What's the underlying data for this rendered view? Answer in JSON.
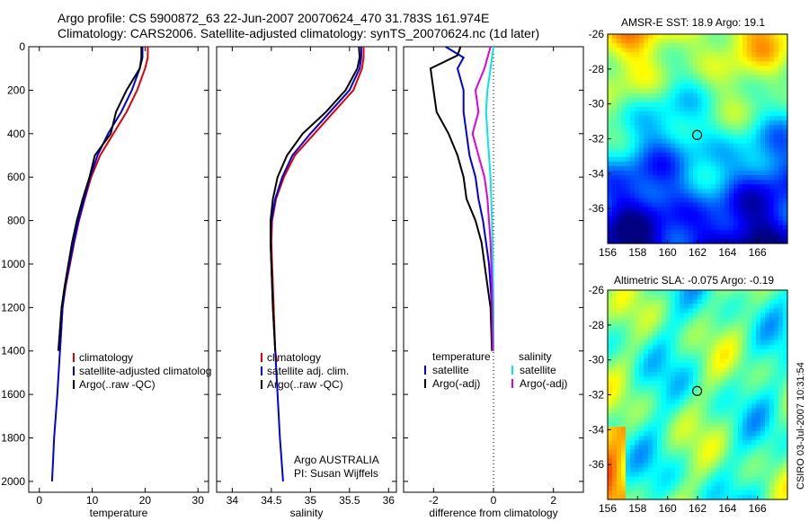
{
  "header": {
    "line1": "Argo profile: CS 5900872_63 22-Jun-2007 20070624_470 31.783S 161.974E",
    "line2": "Climatology: CARS2006. Satellite-adjusted climatology: synTS_20070624.nc (1d later)"
  },
  "stamp": "CSIRO 03-Jul-2007 10:31:54",
  "colors": {
    "climatology": "#e00000",
    "satellite": "#0000dd",
    "argo": "#000000",
    "sat_salinity": "#00e8e8",
    "argo_salinity": "#e000e0"
  },
  "chart_data": [
    {
      "type": "line",
      "panel": "temperature",
      "xlabel": "temperature",
      "ylabel": "",
      "xlim": [
        -2,
        32
      ],
      "ylim": [
        2050,
        0
      ],
      "xticks": [
        0,
        10,
        20,
        30
      ],
      "yticks": [
        0,
        200,
        400,
        600,
        800,
        1000,
        1200,
        1400,
        1600,
        1800,
        2000
      ],
      "legend": [
        "climatology",
        "satellite-adjusted climatolog",
        "Argo(..raw -QC)"
      ],
      "series": [
        {
          "name": "climatology",
          "color_key": "climatology",
          "x": [
            20.5,
            20.5,
            20.0,
            18.5,
            16.5,
            14.0,
            11.5,
            9.8,
            8.6,
            7.5,
            6.6,
            5.8,
            5.0,
            4.4,
            3.9
          ],
          "y": [
            0,
            50,
            100,
            200,
            300,
            400,
            500,
            600,
            700,
            800,
            900,
            1000,
            1100,
            1200,
            1400
          ]
        },
        {
          "name": "satellite-adjusted climatolog",
          "color_key": "satellite",
          "x": [
            19.5,
            19.5,
            19.0,
            17.5,
            15.5,
            13.0,
            11.0,
            9.6,
            8.5,
            7.4,
            6.5,
            5.7,
            4.9,
            4.4,
            3.9,
            3.4,
            3.1,
            2.8,
            2.6,
            2.4
          ],
          "y": [
            0,
            50,
            100,
            200,
            300,
            400,
            500,
            600,
            700,
            800,
            900,
            1000,
            1100,
            1200,
            1400,
            1600,
            1700,
            1800,
            1900,
            2000
          ]
        },
        {
          "name": "Argo(..raw -QC)",
          "color_key": "argo",
          "x": [
            19.3,
            19.3,
            19.0,
            16.5,
            14.5,
            13.5,
            10.5,
            9.5,
            8.2,
            7.1,
            6.2,
            5.5,
            4.8,
            4.2,
            3.6
          ],
          "y": [
            0,
            50,
            100,
            200,
            300,
            400,
            500,
            600,
            700,
            800,
            900,
            1000,
            1100,
            1200,
            1400
          ]
        }
      ]
    },
    {
      "type": "line",
      "panel": "salinity",
      "xlabel": "salinity",
      "ylabel": "",
      "xlim": [
        33.8,
        36.1
      ],
      "ylim": [
        2050,
        0
      ],
      "xticks": [
        34,
        34.5,
        35,
        35.5,
        36
      ],
      "annotation": [
        "Argo AUSTRALIA",
        "PI: Susan Wijffels"
      ],
      "legend": [
        "climatology",
        "satellite adj. clim.",
        "Argo(..raw -QC)"
      ],
      "series": [
        {
          "name": "climatology",
          "color_key": "climatology",
          "x": [
            35.68,
            35.68,
            35.66,
            35.55,
            35.3,
            35.05,
            34.8,
            34.66,
            34.56,
            34.51,
            34.5,
            34.51,
            34.53,
            34.55,
            34.57
          ],
          "y": [
            0,
            50,
            100,
            200,
            300,
            400,
            500,
            600,
            700,
            800,
            900,
            1000,
            1200,
            1400,
            1450
          ]
        },
        {
          "name": "satellite adj. clim.",
          "color_key": "satellite",
          "x": [
            35.65,
            35.65,
            35.63,
            35.5,
            35.25,
            35.0,
            34.77,
            34.64,
            34.55,
            34.5,
            34.49,
            34.5,
            34.52,
            34.55,
            34.58,
            34.61,
            34.63,
            34.65
          ],
          "y": [
            0,
            50,
            100,
            200,
            300,
            400,
            500,
            600,
            700,
            800,
            900,
            1000,
            1200,
            1400,
            1600,
            1800,
            1900,
            2000
          ]
        },
        {
          "name": "Argo(..raw -QC)",
          "color_key": "argo",
          "x": [
            35.62,
            35.63,
            35.6,
            35.45,
            35.2,
            34.9,
            34.7,
            34.58,
            34.52,
            34.49,
            34.49,
            34.5,
            34.52,
            34.55
          ],
          "y": [
            0,
            50,
            100,
            200,
            300,
            400,
            500,
            600,
            700,
            800,
            900,
            1000,
            1200,
            1400
          ]
        }
      ]
    },
    {
      "type": "line",
      "panel": "difference",
      "xlabel": "difference from climatology",
      "ylabel": "",
      "xlim": [
        -3,
        3
      ],
      "ylim": [
        2050,
        0
      ],
      "xticks": [
        -2,
        0,
        2
      ],
      "legend_groups": [
        {
          "heading": "temperature",
          "items": [
            "satellite",
            "Argo(-adj)"
          ]
        },
        {
          "heading": "salinity",
          "items": [
            "satellite",
            "Argo(-adj)"
          ]
        }
      ],
      "series": [
        {
          "name": "temperature satellite",
          "color_key": "satellite",
          "x": [
            -1.6,
            -1.0,
            -1.2,
            -1.0,
            -1.0,
            -0.9,
            -0.8,
            -0.6,
            -0.5,
            -0.35,
            -0.25,
            -0.15,
            -0.1,
            -0.05,
            0.0
          ],
          "y": [
            0,
            50,
            100,
            200,
            300,
            400,
            500,
            600,
            700,
            800,
            900,
            1000,
            1100,
            1200,
            1400
          ]
        },
        {
          "name": "temperature Argo(-adj)",
          "color_key": "argo",
          "x": [
            -1.1,
            -1.2,
            -2.1,
            -2.0,
            -1.9,
            -1.5,
            -1.2,
            -1.0,
            -0.9,
            -0.6,
            -0.4,
            -0.3,
            -0.2,
            -0.1,
            -0.05
          ],
          "y": [
            0,
            40,
            100,
            200,
            300,
            400,
            500,
            600,
            700,
            800,
            900,
            1000,
            1100,
            1200,
            1400
          ]
        },
        {
          "name": "salinity satellite",
          "color_key": "sat_salinity",
          "x": [
            0.0,
            -0.1,
            -0.2,
            -0.25,
            -0.2,
            -0.15,
            -0.1,
            -0.05,
            -0.02,
            0.0,
            0.0
          ],
          "y": [
            0,
            100,
            200,
            300,
            400,
            500,
            600,
            800,
            1000,
            1200,
            1400
          ]
        },
        {
          "name": "salinity Argo(-adj)",
          "color_key": "argo_salinity",
          "x": [
            -0.1,
            -0.3,
            -0.6,
            -0.5,
            -0.7,
            -0.5,
            -0.3,
            -0.2,
            -0.1,
            -0.05,
            -0.02
          ],
          "y": [
            0,
            100,
            200,
            300,
            400,
            500,
            600,
            700,
            900,
            1100,
            1400
          ]
        }
      ]
    },
    {
      "type": "heatmap",
      "panel": "sst_map",
      "title": "AMSR-E SST: 18.9 Argo: 19.1",
      "xlim": [
        156,
        168
      ],
      "ylim": [
        -38,
        -26
      ],
      "xticks": [
        156,
        158,
        160,
        162,
        164,
        166
      ],
      "yticks": [
        -26,
        -28,
        -30,
        -32,
        -34,
        -36
      ],
      "marker": {
        "lon": 161.974,
        "lat": -31.783
      }
    },
    {
      "type": "heatmap",
      "panel": "sla_map",
      "title": "Altimetric SLA: -0.075 Argo: -0.19",
      "xlim": [
        156,
        168
      ],
      "ylim": [
        -38,
        -26
      ],
      "xticks": [
        156,
        158,
        160,
        162,
        164,
        166
      ],
      "yticks": [
        -26,
        -28,
        -30,
        -32,
        -34,
        -36
      ],
      "marker": {
        "lon": 161.974,
        "lat": -31.783
      }
    }
  ]
}
